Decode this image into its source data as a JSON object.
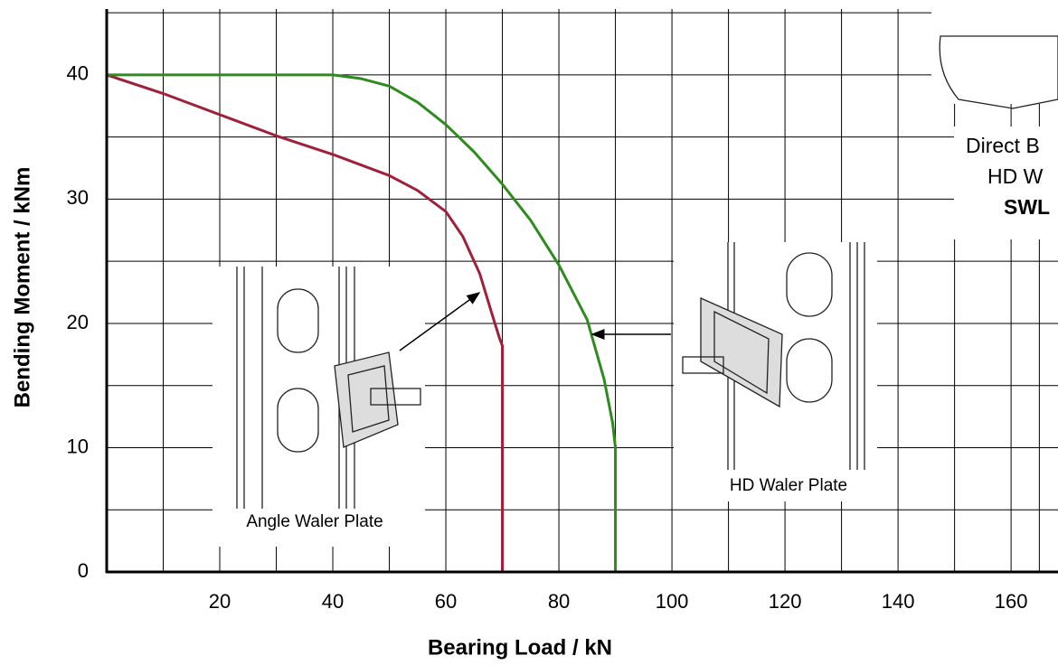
{
  "chart_data": {
    "type": "line",
    "x_label": "Bearing Load / kN",
    "y_label": "Bending Moment / kNm",
    "xlim": [
      0,
      168.3
    ],
    "ylim": [
      0,
      45.3
    ],
    "xticks": [
      20,
      40,
      60,
      80,
      100,
      120,
      140,
      160
    ],
    "x_minor_grid": [
      10,
      30,
      50,
      70,
      90,
      110,
      130,
      150,
      165
    ],
    "yticks": [
      0,
      10,
      20,
      30,
      40
    ],
    "y_minor_grid": [
      5,
      15,
      25,
      35,
      45
    ],
    "grid": true,
    "series": [
      {
        "name": "Angle Waler Plate",
        "color": "#a0203c",
        "x": [
          0,
          10,
          20,
          30,
          40,
          50,
          55,
          60,
          63,
          66,
          68,
          69.5,
          70,
          70
        ],
        "values": [
          40,
          38.5,
          36.8,
          35.1,
          33.6,
          31.9,
          30.7,
          29,
          27,
          24,
          21,
          18.8,
          18.2,
          0
        ]
      },
      {
        "name": "HD Waler Plate",
        "color": "#2e8b1e",
        "x": [
          0,
          40,
          45,
          50,
          55,
          60,
          65,
          70,
          75,
          80,
          85,
          88,
          89.5,
          90,
          90
        ],
        "values": [
          40,
          40,
          39.7,
          39.1,
          37.8,
          36,
          33.8,
          31.2,
          28.3,
          24.7,
          20.3,
          15.5,
          12,
          10,
          0
        ]
      }
    ],
    "annotations": [
      "Direct B",
      "HD W",
      "SWL"
    ]
  }
}
